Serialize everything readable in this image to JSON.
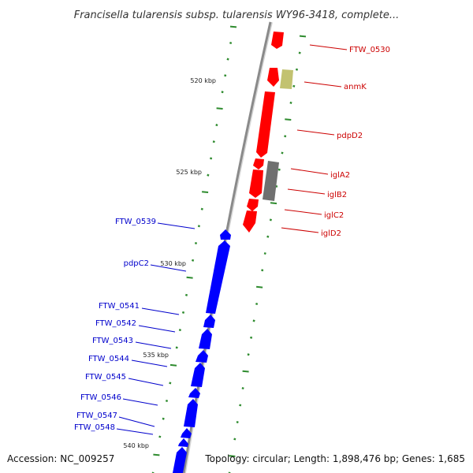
{
  "title": "Francisella tularensis subsp. tularensis WY96-3418, complete...",
  "footer": {
    "accession": "Accession: NC_009257",
    "summary": "Topology: circular; Length: 1,898,476 bp; Genes: 1,685"
  },
  "colors": {
    "forward_gene": "#ff0000",
    "reverse_gene": "#0000ff",
    "forward_label": "#cc0000",
    "reverse_label": "#0000cc",
    "olive_gene": "#c2c270",
    "gray_gene": "#707070",
    "backbone": "#8a8a8a",
    "tick": "#2e8b2e"
  },
  "scale_labels": [
    "520 kbp",
    "525 kbp",
    "530 kbp",
    "535 kbp",
    "540 kbp"
  ],
  "forward_genes": [
    {
      "label": "FTW_0530"
    },
    {
      "label": "anmK"
    },
    {
      "label": "pdpD2"
    },
    {
      "label": "iglA2"
    },
    {
      "label": "iglB2"
    },
    {
      "label": "iglC2"
    },
    {
      "label": "iglD2"
    }
  ],
  "reverse_genes": [
    {
      "label": "FTW_0539"
    },
    {
      "label": "pdpC2"
    },
    {
      "label": "FTW_0541"
    },
    {
      "label": "FTW_0542"
    },
    {
      "label": "FTW_0543"
    },
    {
      "label": "FTW_0544"
    },
    {
      "label": "FTW_0545"
    },
    {
      "label": "FTW_0546"
    },
    {
      "label": "FTW_0547"
    },
    {
      "label": "FTW_0548"
    }
  ]
}
